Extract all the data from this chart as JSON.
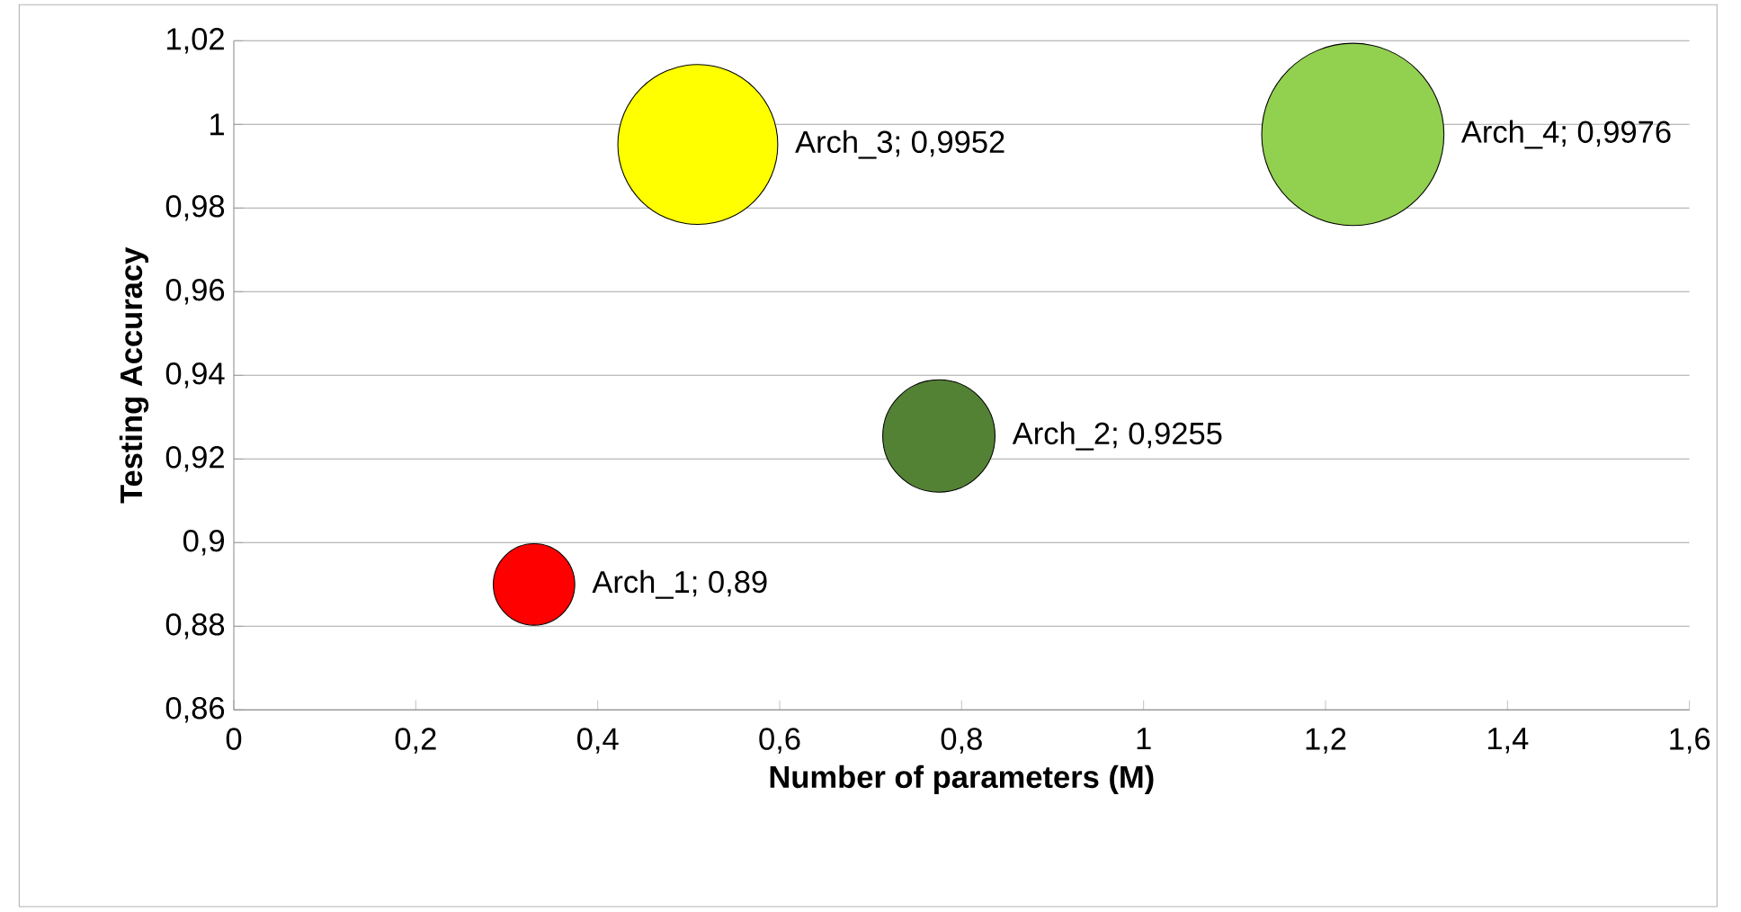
{
  "chart_data": {
    "type": "bubble",
    "xlabel": "Number of parameters (M)",
    "ylabel": "Testing Accuracy",
    "x": [
      0.33,
      0.775,
      0.51,
      1.23
    ],
    "values": [
      0.89,
      0.9255,
      0.9952,
      0.9976
    ],
    "sizes": [
      0.2,
      0.38,
      0.77,
      1
    ],
    "colors": [
      "#ff0000",
      "#548235",
      "#ffff00",
      "#92d050"
    ],
    "xlim": [
      0,
      1.6
    ],
    "ylim": [
      0.86,
      1.02
    ],
    "xticks": [
      0,
      {
        "value": 0.2,
        "label": "0,2"
      },
      {
        "value": 0.4,
        "label": "0,4"
      },
      {
        "value": 0.6,
        "label": "0,6"
      },
      {
        "value": 0.8,
        "label": "0,8"
      },
      1,
      {
        "value": 1.2,
        "label": "1,2"
      },
      {
        "value": 1.4,
        "label": "1,4"
      },
      {
        "value": 1.6,
        "label": "1,6"
      }
    ],
    "yticks": [
      {
        "value": 0.86,
        "label": "0,86"
      },
      {
        "value": 0.88,
        "label": "0,88"
      },
      {
        "value": 0.9,
        "label": "0,9"
      },
      {
        "value": 0.92,
        "label": "0,92"
      },
      {
        "value": 0.94,
        "label": "0,94"
      },
      {
        "value": 0.96,
        "label": "0,96"
      },
      {
        "value": 0.98,
        "label": "0,98"
      },
      1,
      {
        "value": 1.02,
        "label": "1,02"
      }
    ],
    "grid": "y",
    "value_labels": [
      "Arch_1;  0,89",
      "Arch_2; 0,9255",
      "Arch_3; 0,9952",
      "Arch_4; 0,9976"
    ]
  }
}
